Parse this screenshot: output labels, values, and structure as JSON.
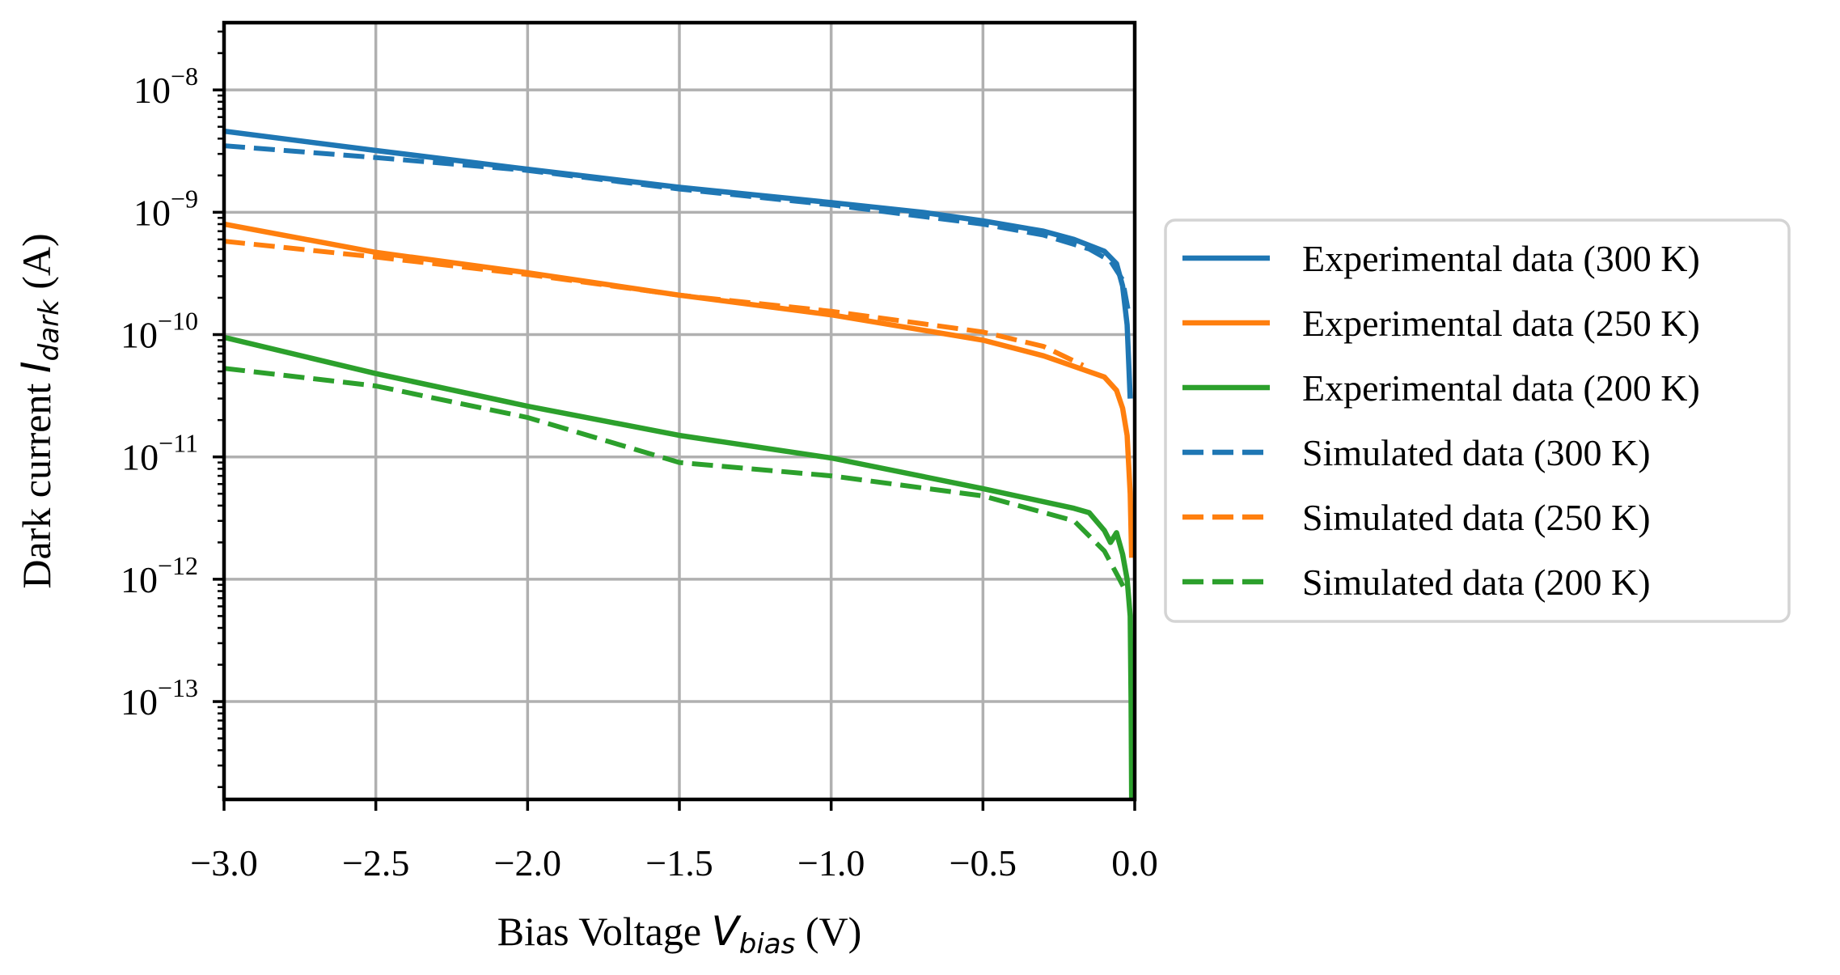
{
  "chart_data": {
    "type": "line",
    "yscale": "log",
    "xlim": [
      -3.0,
      0.0
    ],
    "ylim_exp": [
      -13.8,
      -7.45
    ],
    "grid": true,
    "legend_position": "outside-right",
    "xlabel": {
      "prefix": "Bias Voltage ",
      "symbol": "V",
      "subscript": "bias",
      "suffix": " (V)"
    },
    "ylabel": {
      "prefix": "Dark current ",
      "symbol": "I",
      "subscript": "dark",
      "suffix": " (A)"
    },
    "xticks": [
      -3.0,
      -2.5,
      -2.0,
      -1.5,
      -1.0,
      -0.5,
      0.0
    ],
    "xtick_labels": [
      "−3.0",
      "−2.5",
      "−2.0",
      "−1.5",
      "−1.0",
      "−0.5",
      "0.0"
    ],
    "yticks": [
      {
        "exp": -8,
        "base": "10",
        "sup": "−8"
      },
      {
        "exp": -9,
        "base": "10",
        "sup": "−9"
      },
      {
        "exp": -10,
        "base": "10",
        "sup": "−10"
      },
      {
        "exp": -11,
        "base": "10",
        "sup": "−11"
      },
      {
        "exp": -12,
        "base": "10",
        "sup": "−12"
      },
      {
        "exp": -13,
        "base": "10",
        "sup": "−13"
      }
    ],
    "series": [
      {
        "name": "Experimental data (300 K)",
        "color": "#1f77b4",
        "style": "solid",
        "x": [
          -3.0,
          -2.5,
          -2.0,
          -1.5,
          -1.0,
          -0.7,
          -0.5,
          -0.3,
          -0.2,
          -0.1,
          -0.06,
          -0.04,
          -0.025,
          -0.015
        ],
        "y": [
          4.6e-09,
          3.2e-09,
          2.25e-09,
          1.6e-09,
          1.2e-09,
          1e-09,
          8.5e-10,
          7e-10,
          6e-10,
          4.8e-10,
          3.8e-10,
          2.5e-10,
          1.2e-10,
          3e-11
        ]
      },
      {
        "name": "Experimental data (250 K)",
        "color": "#ff7f0e",
        "style": "solid",
        "x": [
          -3.0,
          -2.5,
          -2.0,
          -1.5,
          -1.0,
          -0.5,
          -0.3,
          -0.2,
          -0.1,
          -0.06,
          -0.04,
          -0.025,
          -0.015,
          -0.01
        ],
        "y": [
          8e-10,
          4.7e-10,
          3.2e-10,
          2.1e-10,
          1.45e-10,
          9e-11,
          6.7e-11,
          5.5e-11,
          4.5e-11,
          3.5e-11,
          2.5e-11,
          1.5e-11,
          5e-12,
          1.5e-12
        ]
      },
      {
        "name": "Experimental data (200 K)",
        "color": "#2ca02c",
        "style": "solid",
        "x": [
          -3.0,
          -2.5,
          -2.0,
          -1.5,
          -1.0,
          -0.5,
          -0.2,
          -0.15,
          -0.1,
          -0.08,
          -0.06,
          -0.04,
          -0.025,
          -0.015,
          -0.012,
          -0.01
        ],
        "y": [
          9.5e-11,
          4.8e-11,
          2.6e-11,
          1.5e-11,
          9.8e-12,
          5.5e-12,
          3.8e-12,
          3.5e-12,
          2.5e-12,
          2e-12,
          2.4e-12,
          1.6e-12,
          1e-12,
          5e-13,
          1e-13,
          1.6e-14
        ]
      },
      {
        "name": "Simulated data (300 K)",
        "color": "#1f77b4",
        "style": "dashed",
        "x": [
          -3.0,
          -2.5,
          -2.0,
          -1.5,
          -1.0,
          -0.5,
          -0.3,
          -0.15,
          -0.08,
          -0.04,
          -0.02
        ],
        "y": [
          3.5e-09,
          2.8e-09,
          2.2e-09,
          1.55e-09,
          1.15e-09,
          8e-10,
          6.5e-10,
          5e-10,
          4e-10,
          2.8e-10,
          1.5e-10
        ]
      },
      {
        "name": "Simulated data (250 K)",
        "color": "#ff7f0e",
        "style": "dashed",
        "x": [
          -3.0,
          -2.5,
          -2.0,
          -1.5,
          -1.0,
          -0.5,
          -0.3,
          -0.17
        ],
        "y": [
          5.8e-10,
          4.3e-10,
          3.1e-10,
          2.1e-10,
          1.55e-10,
          1.05e-10,
          8e-11,
          5.6e-11
        ]
      },
      {
        "name": "Simulated data (200 K)",
        "color": "#2ca02c",
        "style": "dashed",
        "x": [
          -3.0,
          -2.5,
          -2.0,
          -1.5,
          -1.0,
          -0.5,
          -0.2,
          -0.1,
          -0.05,
          -0.03
        ],
        "y": [
          5.3e-11,
          3.8e-11,
          2.1e-11,
          9e-12,
          7e-12,
          4.8e-12,
          3e-12,
          1.7e-12,
          1e-12,
          8e-13
        ]
      }
    ]
  }
}
